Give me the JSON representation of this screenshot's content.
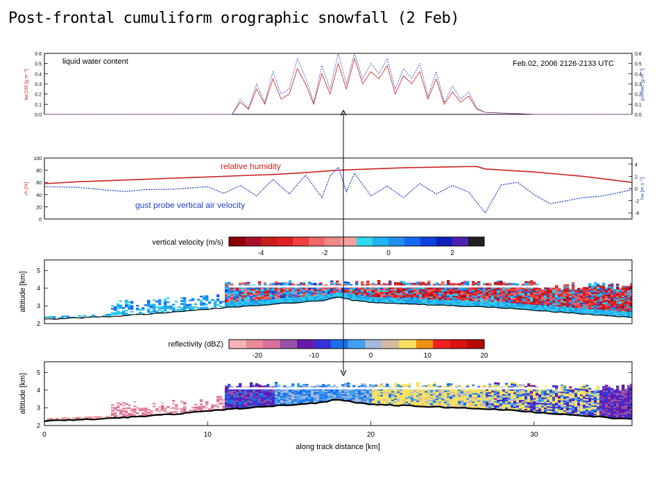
{
  "slide": {
    "title": "Post-frontal cumuliform orographic snowfall (2 Feb)"
  },
  "colors": {
    "lwc_series": "#d03030",
    "lwc_alt_series": "#3050d0",
    "rh_series": "#cc2020",
    "w_series": "#2040c0",
    "marker_arrow": "#000000"
  },
  "chart_data": [
    {
      "id": "lwc-panel",
      "type": "line",
      "annotation": "liquid water content",
      "timestamp": "Feb.02, 2006 2126-2133 UTC",
      "ylabel_left": "lwc100 [g m⁻³]",
      "ylabel_right": "pvmlwc [g m⁻³]",
      "xlim": [
        0,
        36
      ],
      "ylim": [
        0,
        0.6
      ],
      "yticks": [
        "0.0",
        "0.1",
        "0.2",
        "0.3",
        "0.4",
        "0.5",
        "0.6"
      ],
      "yticks_right": [
        "0.0",
        "0.1",
        "0.2",
        "0.3",
        "0.4",
        "0.5",
        "0.6"
      ],
      "series": [
        {
          "x": [
            0,
            5,
            10,
            11.5,
            12,
            12.5,
            13,
            13.5,
            14,
            14.5,
            15,
            15.5,
            16,
            16.5,
            17,
            17.5,
            18,
            18.5,
            19,
            19.5,
            20,
            20.5,
            21,
            21.5,
            22,
            22.5,
            23,
            23.5,
            24,
            24.5,
            25,
            25.5,
            26,
            26.5,
            27,
            30,
            36
          ],
          "values": [
            0,
            0,
            0,
            0,
            0.12,
            0.05,
            0.25,
            0.1,
            0.35,
            0.15,
            0.2,
            0.45,
            0.3,
            0.1,
            0.4,
            0.2,
            0.5,
            0.25,
            0.55,
            0.3,
            0.42,
            0.35,
            0.48,
            0.2,
            0.38,
            0.3,
            0.42,
            0.15,
            0.35,
            0.1,
            0.22,
            0.12,
            0.18,
            0.05,
            0.02,
            0,
            0
          ]
        },
        {
          "x": [
            0,
            5,
            10,
            11.5,
            12,
            12.5,
            13,
            13.5,
            14,
            14.5,
            15,
            15.5,
            16,
            16.5,
            17,
            17.5,
            18,
            18.5,
            19,
            19.5,
            20,
            20.5,
            21,
            21.5,
            22,
            22.5,
            23,
            23.5,
            24,
            24.5,
            25,
            25.5,
            26,
            26.5,
            27,
            30,
            36
          ],
          "values": [
            0,
            0,
            0,
            0,
            0.15,
            0.06,
            0.3,
            0.12,
            0.42,
            0.2,
            0.25,
            0.55,
            0.36,
            0.12,
            0.48,
            0.25,
            0.6,
            0.3,
            0.6,
            0.35,
            0.5,
            0.4,
            0.55,
            0.25,
            0.45,
            0.35,
            0.5,
            0.18,
            0.42,
            0.12,
            0.28,
            0.15,
            0.22,
            0.06,
            0.02,
            0,
            0
          ]
        }
      ]
    },
    {
      "id": "rh-w-panel",
      "type": "line",
      "ylabel_left": "rh [%]",
      "ylabel_right": "hw [m s⁻¹]",
      "xlim": [
        0,
        36
      ],
      "ylim": [
        0,
        100
      ],
      "ylim_right": [
        -5,
        5
      ],
      "yticks": [
        "0",
        "20",
        "40",
        "60",
        "80",
        "100"
      ],
      "yticks_right": [
        "-4",
        "-2",
        "0",
        "2",
        "4"
      ],
      "series": [
        {
          "name": "relative humidity",
          "x": [
            0,
            2,
            4,
            6,
            8,
            10,
            12,
            14,
            16,
            18,
            20,
            22,
            24,
            26,
            26.5,
            27,
            30,
            33,
            36
          ],
          "values": [
            58,
            61,
            63,
            65,
            67,
            69,
            71,
            73,
            76,
            80,
            82,
            84,
            85,
            86,
            86,
            82,
            77,
            70,
            60
          ]
        },
        {
          "name": "gust probe vertical air velocity",
          "x": [
            0,
            2,
            4,
            5,
            6,
            8,
            10,
            11,
            12,
            13,
            14,
            15,
            16,
            17,
            17.5,
            18,
            18.5,
            19,
            20,
            21,
            22,
            23,
            24,
            25,
            26,
            27,
            28,
            29,
            30,
            31,
            32,
            33,
            34,
            35,
            36
          ],
          "values": [
            0.3,
            0.2,
            -0.3,
            -0.5,
            -0.2,
            -0.1,
            0.3,
            -0.8,
            0.5,
            -1.2,
            1.5,
            -0.9,
            2.2,
            -1.5,
            2.0,
            3.5,
            -0.5,
            2.5,
            -1.2,
            0.4,
            -1.5,
            0.8,
            -0.9,
            0.5,
            -0.6,
            -4.0,
            0.6,
            1.0,
            -1.0,
            -2.5,
            -2.0,
            -1.5,
            -1.3,
            -0.8,
            -0.2
          ]
        }
      ]
    },
    {
      "id": "velocity-colorbar",
      "type": "heatmap",
      "label": "vertical velocity (m/s)",
      "range": [
        -5,
        3
      ],
      "ticks": [
        "-4",
        "-2",
        "0",
        "2"
      ],
      "tick_values": [
        -4,
        -2,
        0,
        2
      ],
      "colors": [
        "#8b0000",
        "#a8102a",
        "#c81e1e",
        "#e02020",
        "#ee4040",
        "#f06868",
        "#f08888",
        "#f4a0a0",
        "#30d8f0",
        "#20b4f0",
        "#2090f0",
        "#1868f0",
        "#1040e0",
        "#1020b8",
        "#5020b0",
        "#202020"
      ]
    },
    {
      "id": "velocity-radar-panel",
      "type": "heatmap",
      "ylabel": "altitude [km]",
      "xlim": [
        0,
        36
      ],
      "ylim": [
        2,
        5.6
      ],
      "yticks": [
        "2",
        "3",
        "4",
        "5"
      ],
      "surface": {
        "x": [
          0,
          4,
          8,
          11,
          14,
          17,
          18,
          19,
          20,
          24,
          28,
          30,
          33,
          36
        ],
        "values": [
          2.25,
          2.4,
          2.65,
          2.9,
          3.1,
          3.3,
          3.5,
          3.3,
          3.2,
          3.05,
          2.9,
          2.75,
          2.55,
          2.35
        ]
      }
    },
    {
      "id": "reflectivity-colorbar",
      "type": "heatmap",
      "label": "reflectivity (dBZ)",
      "range": [
        -25,
        20
      ],
      "ticks": [
        "-20",
        "-10",
        "0",
        "10",
        "20"
      ],
      "tick_values": [
        -20,
        -10,
        0,
        10,
        20
      ],
      "colors": [
        "#f4b4b8",
        "#e88c98",
        "#d8709c",
        "#9850a8",
        "#6818a8",
        "#3830d8",
        "#1870e8",
        "#40a0f0",
        "#a8b8d8",
        "#d4bca0",
        "#f8e060",
        "#f09010",
        "#f02020",
        "#d81010",
        "#b80808"
      ]
    },
    {
      "id": "reflectivity-radar-panel",
      "type": "heatmap",
      "ylabel": "altitude [km]",
      "xlabel": "along track distance [km]",
      "xlim": [
        0,
        36
      ],
      "ylim": [
        2,
        5.6
      ],
      "yticks": [
        "2",
        "3",
        "4",
        "5"
      ],
      "xticks": [
        "0",
        "10",
        "20",
        "30"
      ],
      "xtick_values": [
        0,
        10,
        20,
        30
      ],
      "surface": {
        "x": [
          0,
          4,
          8,
          11,
          14,
          17,
          18,
          19,
          20,
          24,
          28,
          30,
          33,
          36
        ],
        "values": [
          2.25,
          2.4,
          2.65,
          2.9,
          3.1,
          3.3,
          3.5,
          3.3,
          3.2,
          3.05,
          2.9,
          2.75,
          2.55,
          2.35
        ]
      }
    }
  ],
  "labels": {
    "panel1": "liquid water content",
    "panel1_time": "Feb.02, 2006 2126-2133 UTC",
    "rh": "relative humidity",
    "w": "gust probe vertical air velocity"
  }
}
